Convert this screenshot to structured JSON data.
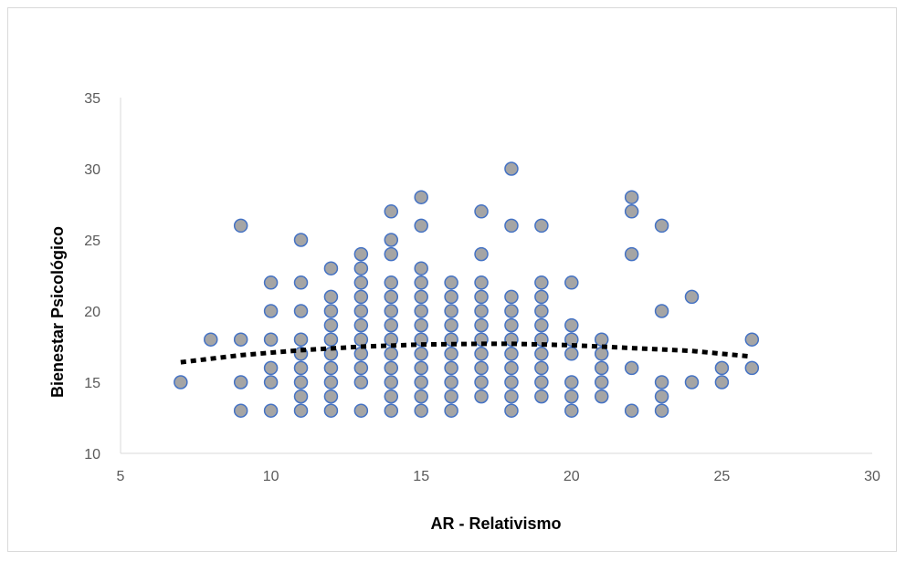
{
  "chart_data": {
    "type": "scatter",
    "title": "",
    "xlabel": "AR - Relativismo",
    "ylabel": "Bienestar Psicológico",
    "xlim": [
      5,
      30
    ],
    "ylim": [
      10,
      35
    ],
    "x_ticks": [
      5,
      10,
      15,
      20,
      25,
      30
    ],
    "y_ticks": [
      10,
      15,
      20,
      25,
      30,
      35
    ],
    "grid": false,
    "legend": "none",
    "marker_fill": "#a5a5a5",
    "marker_stroke": "#4472c4",
    "trendline_color": "#000000",
    "trendline_style": "dotted",
    "trendline": {
      "type": "polynomial",
      "x": [
        7,
        9,
        11,
        13,
        15,
        17,
        18,
        20,
        22,
        24,
        26
      ],
      "y": [
        16.4,
        16.9,
        17.25,
        17.5,
        17.65,
        17.7,
        17.7,
        17.6,
        17.4,
        17.2,
        16.8
      ]
    },
    "points": [
      [
        7,
        15
      ],
      [
        8,
        18
      ],
      [
        9,
        26
      ],
      [
        9,
        18
      ],
      [
        9,
        15
      ],
      [
        9,
        13
      ],
      [
        10,
        22
      ],
      [
        10,
        20
      ],
      [
        10,
        18
      ],
      [
        10,
        16
      ],
      [
        10,
        15
      ],
      [
        10,
        13
      ],
      [
        11,
        25
      ],
      [
        11,
        22
      ],
      [
        11,
        20
      ],
      [
        11,
        18
      ],
      [
        11,
        17
      ],
      [
        11,
        16
      ],
      [
        11,
        15
      ],
      [
        11,
        14
      ],
      [
        11,
        13
      ],
      [
        12,
        23
      ],
      [
        12,
        21
      ],
      [
        12,
        20
      ],
      [
        12,
        19
      ],
      [
        12,
        18
      ],
      [
        12,
        17
      ],
      [
        12,
        16
      ],
      [
        12,
        15
      ],
      [
        12,
        14
      ],
      [
        12,
        13
      ],
      [
        13,
        24
      ],
      [
        13,
        23
      ],
      [
        13,
        22
      ],
      [
        13,
        21
      ],
      [
        13,
        20
      ],
      [
        13,
        19
      ],
      [
        13,
        18
      ],
      [
        13,
        17
      ],
      [
        13,
        16
      ],
      [
        13,
        15
      ],
      [
        13,
        13
      ],
      [
        14,
        27
      ],
      [
        14,
        25
      ],
      [
        14,
        24
      ],
      [
        14,
        22
      ],
      [
        14,
        21
      ],
      [
        14,
        20
      ],
      [
        14,
        19
      ],
      [
        14,
        18
      ],
      [
        14,
        17
      ],
      [
        14,
        16
      ],
      [
        14,
        15
      ],
      [
        14,
        14
      ],
      [
        14,
        13
      ],
      [
        15,
        28
      ],
      [
        15,
        26
      ],
      [
        15,
        23
      ],
      [
        15,
        22
      ],
      [
        15,
        21
      ],
      [
        15,
        20
      ],
      [
        15,
        19
      ],
      [
        15,
        18
      ],
      [
        15,
        17
      ],
      [
        15,
        16
      ],
      [
        15,
        15
      ],
      [
        15,
        14
      ],
      [
        15,
        13
      ],
      [
        16,
        22
      ],
      [
        16,
        21
      ],
      [
        16,
        20
      ],
      [
        16,
        19
      ],
      [
        16,
        18
      ],
      [
        16,
        17
      ],
      [
        16,
        16
      ],
      [
        16,
        15
      ],
      [
        16,
        14
      ],
      [
        16,
        13
      ],
      [
        17,
        27
      ],
      [
        17,
        24
      ],
      [
        17,
        22
      ],
      [
        17,
        21
      ],
      [
        17,
        20
      ],
      [
        17,
        19
      ],
      [
        17,
        18
      ],
      [
        17,
        17
      ],
      [
        17,
        16
      ],
      [
        17,
        15
      ],
      [
        17,
        14
      ],
      [
        18,
        30
      ],
      [
        18,
        26
      ],
      [
        18,
        21
      ],
      [
        18,
        20
      ],
      [
        18,
        19
      ],
      [
        18,
        18
      ],
      [
        18,
        17
      ],
      [
        18,
        16
      ],
      [
        18,
        15
      ],
      [
        18,
        14
      ],
      [
        18,
        13
      ],
      [
        19,
        26
      ],
      [
        19,
        22
      ],
      [
        19,
        21
      ],
      [
        19,
        20
      ],
      [
        19,
        19
      ],
      [
        19,
        18
      ],
      [
        19,
        17
      ],
      [
        19,
        16
      ],
      [
        19,
        15
      ],
      [
        19,
        14
      ],
      [
        20,
        22
      ],
      [
        20,
        19
      ],
      [
        20,
        18
      ],
      [
        20,
        17
      ],
      [
        20,
        15
      ],
      [
        20,
        14
      ],
      [
        20,
        13
      ],
      [
        21,
        18
      ],
      [
        21,
        17
      ],
      [
        21,
        16
      ],
      [
        21,
        15
      ],
      [
        21,
        14
      ],
      [
        22,
        28
      ],
      [
        22,
        27
      ],
      [
        22,
        24
      ],
      [
        22,
        16
      ],
      [
        22,
        13
      ],
      [
        23,
        26
      ],
      [
        23,
        20
      ],
      [
        23,
        15
      ],
      [
        23,
        14
      ],
      [
        23,
        13
      ],
      [
        24,
        21
      ],
      [
        24,
        15
      ],
      [
        25,
        16
      ],
      [
        25,
        15
      ],
      [
        26,
        18
      ],
      [
        26,
        16
      ]
    ]
  }
}
